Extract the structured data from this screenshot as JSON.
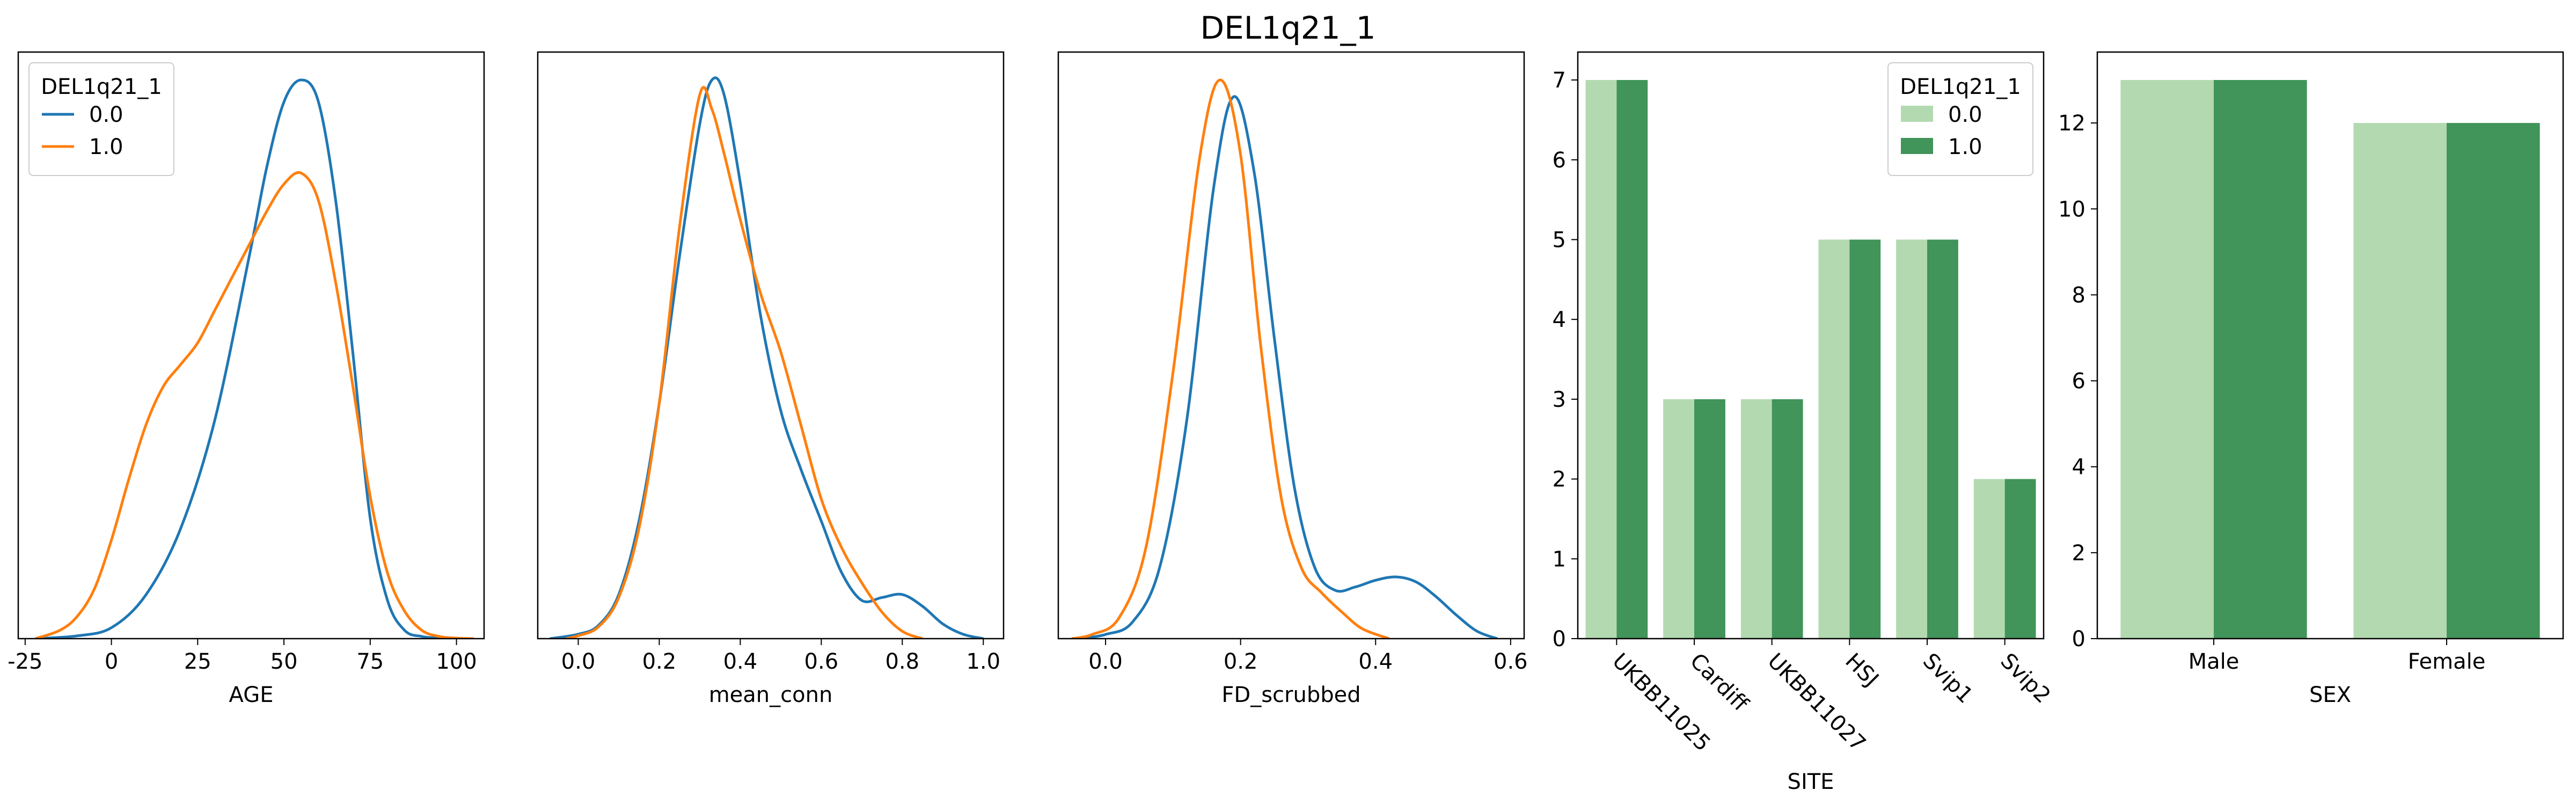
{
  "figure": {
    "title": "DEL1q21_1"
  },
  "colors": {
    "series_0": "#1f77b4",
    "series_1": "#ff7f0e",
    "bar_light": "#b3d9b0",
    "bar_dark": "#41945a"
  },
  "chart_data": [
    {
      "type": "line",
      "subtype": "kde",
      "xlabel": "AGE",
      "ylabel": "",
      "xlim": [
        -27,
        108
      ],
      "xticks": [
        -25,
        0,
        25,
        50,
        75,
        100
      ],
      "show_yaxis": false,
      "legend": {
        "title": "DEL1q21_1",
        "position": "top-left",
        "entries": [
          "0.0",
          "1.0"
        ]
      },
      "series": [
        {
          "name": "0.0",
          "x": [
            -22,
            -10,
            0,
            10,
            20,
            30,
            40,
            45,
            50,
            55,
            60,
            65,
            70,
            75,
            80,
            85,
            90,
            95,
            100,
            105
          ],
          "y": [
            0,
            0.0005,
            0.002,
            0.008,
            0.02,
            0.04,
            0.07,
            0.086,
            0.098,
            0.102,
            0.098,
            0.08,
            0.052,
            0.022,
            0.007,
            0.0015,
            0.0004,
            0.0001,
            0,
            0
          ]
        },
        {
          "name": "1.0",
          "x": [
            -22,
            -15,
            -10,
            -5,
            0,
            5,
            10,
            15,
            20,
            25,
            30,
            35,
            40,
            45,
            50,
            55,
            60,
            65,
            70,
            75,
            80,
            85,
            90,
            95,
            100,
            105
          ],
          "y": [
            0,
            0.0015,
            0.004,
            0.009,
            0.018,
            0.029,
            0.039,
            0.046,
            0.05,
            0.054,
            0.06,
            0.066,
            0.072,
            0.078,
            0.083,
            0.085,
            0.08,
            0.065,
            0.046,
            0.026,
            0.012,
            0.005,
            0.0015,
            0.0004,
            0.0001,
            0
          ]
        }
      ]
    },
    {
      "type": "line",
      "subtype": "kde",
      "xlabel": "mean_conn",
      "ylabel": "",
      "xlim": [
        -0.1,
        1.05
      ],
      "xticks": [
        0.0,
        0.2,
        0.4,
        0.6,
        0.8,
        1.0
      ],
      "show_yaxis": false,
      "series": [
        {
          "name": "0.0",
          "x": [
            -0.07,
            0,
            0.05,
            0.1,
            0.15,
            0.2,
            0.25,
            0.3,
            0.33,
            0.36,
            0.4,
            0.45,
            0.5,
            0.55,
            0.6,
            0.65,
            0.7,
            0.75,
            0.8,
            0.85,
            0.9,
            0.95,
            1.0
          ],
          "y": [
            0,
            0.03,
            0.09,
            0.3,
            0.8,
            1.6,
            2.6,
            3.5,
            3.8,
            3.7,
            3.1,
            2.2,
            1.55,
            1.15,
            0.8,
            0.45,
            0.26,
            0.28,
            0.3,
            0.22,
            0.1,
            0.03,
            0
          ]
        },
        {
          "name": "1.0",
          "x": [
            -0.03,
            0,
            0.05,
            0.1,
            0.15,
            0.2,
            0.25,
            0.3,
            0.33,
            0.36,
            0.4,
            0.45,
            0.5,
            0.55,
            0.6,
            0.65,
            0.7,
            0.75,
            0.8,
            0.85
          ],
          "y": [
            0,
            0.02,
            0.08,
            0.28,
            0.75,
            1.6,
            2.8,
            3.7,
            3.6,
            3.3,
            2.85,
            2.35,
            1.95,
            1.45,
            0.95,
            0.62,
            0.38,
            0.18,
            0.05,
            0
          ]
        }
      ]
    },
    {
      "type": "line",
      "subtype": "kde",
      "xlabel": "FD_scrubbed",
      "ylabel": "",
      "xlim": [
        -0.07,
        0.62
      ],
      "xticks": [
        0.0,
        0.2,
        0.4,
        0.6
      ],
      "show_yaxis": false,
      "series": [
        {
          "name": "0.0",
          "x": [
            -0.04,
            0,
            0.04,
            0.08,
            0.12,
            0.16,
            0.19,
            0.22,
            0.25,
            0.28,
            0.31,
            0.34,
            0.37,
            0.4,
            0.43,
            0.46,
            0.49,
            0.52,
            0.55,
            0.58
          ],
          "y": [
            0,
            0.05,
            0.2,
            0.85,
            2.6,
            5.4,
            6.5,
            5.6,
            3.6,
            1.8,
            0.85,
            0.58,
            0.62,
            0.7,
            0.74,
            0.68,
            0.5,
            0.28,
            0.09,
            0
          ]
        },
        {
          "name": "1.0",
          "x": [
            -0.05,
            -0.02,
            0.02,
            0.06,
            0.1,
            0.14,
            0.17,
            0.2,
            0.23,
            0.26,
            0.29,
            0.32,
            0.35,
            0.38,
            0.42
          ],
          "y": [
            0,
            0.05,
            0.25,
            1.1,
            3.2,
            5.8,
            6.7,
            5.8,
            3.5,
            1.7,
            0.85,
            0.55,
            0.32,
            0.12,
            0
          ]
        }
      ]
    },
    {
      "type": "bar",
      "xlabel": "SITE",
      "ylabel": "",
      "ylim": [
        0,
        7.35
      ],
      "yticks": [
        0,
        1,
        2,
        3,
        4,
        5,
        6,
        7
      ],
      "categories": [
        "UKBB11025",
        "Cardiff",
        "UKBB11027",
        "HSJ",
        "Svip1",
        "Svip2"
      ],
      "legend": {
        "title": "DEL1q21_1",
        "position": "top-right",
        "entries": [
          "0.0",
          "1.0"
        ]
      },
      "series": [
        {
          "name": "0.0",
          "values": [
            7,
            3,
            3,
            5,
            5,
            2
          ]
        },
        {
          "name": "1.0",
          "values": [
            7,
            3,
            3,
            5,
            5,
            2
          ]
        }
      ]
    },
    {
      "type": "bar",
      "xlabel": "SEX",
      "ylabel": "",
      "ylim": [
        0,
        13.65
      ],
      "yticks": [
        0,
        2,
        4,
        6,
        8,
        10,
        12
      ],
      "categories": [
        "Male",
        "Female"
      ],
      "series": [
        {
          "name": "0.0",
          "values": [
            13,
            12
          ]
        },
        {
          "name": "1.0",
          "values": [
            13,
            12
          ]
        }
      ]
    }
  ]
}
